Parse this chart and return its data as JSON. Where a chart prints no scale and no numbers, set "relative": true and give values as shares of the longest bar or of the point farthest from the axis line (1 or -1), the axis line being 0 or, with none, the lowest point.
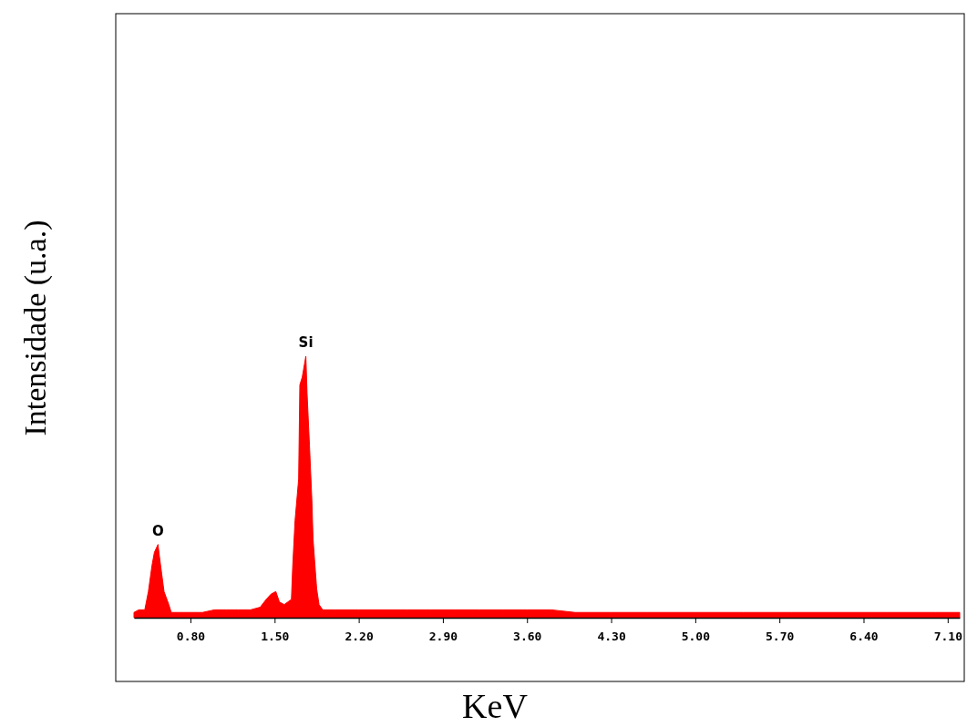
{
  "chart_data": {
    "type": "area",
    "relative": true,
    "xlabel": "KeV",
    "ylabel": "Intensidade (u.a.)",
    "xlim": [
      0.33,
      7.2
    ],
    "xticks": [
      {
        "value": 0.8,
        "label": "0.80"
      },
      {
        "value": 1.5,
        "label": "1.50"
      },
      {
        "value": 2.2,
        "label": "2.20"
      },
      {
        "value": 2.9,
        "label": "2.90"
      },
      {
        "value": 3.6,
        "label": "3.60"
      },
      {
        "value": 4.3,
        "label": "4.30"
      },
      {
        "value": 5.0,
        "label": "5.00"
      },
      {
        "value": 5.7,
        "label": "5.70"
      },
      {
        "value": 6.4,
        "label": "6.40"
      },
      {
        "value": 7.1,
        "label": "7.10"
      }
    ],
    "annotations": [
      {
        "text": "O",
        "x": 0.53,
        "y": 0.28
      },
      {
        "text": "Si",
        "x": 1.76,
        "y": 1
      }
    ],
    "series": [
      {
        "color": "#ff0000",
        "x": [
          0.33,
          0.37,
          0.42,
          0.45,
          0.48,
          0.5,
          0.53,
          0.54,
          0.56,
          0.58,
          0.62,
          0.64,
          0.7,
          0.8,
          0.9,
          1.0,
          1.1,
          1.2,
          1.3,
          1.38,
          1.43,
          1.47,
          1.51,
          1.54,
          1.58,
          1.61,
          1.64,
          1.65,
          1.67,
          1.7,
          1.71,
          1.73,
          1.76,
          1.77,
          1.79,
          1.81,
          1.82,
          1.85,
          1.87,
          1.9,
          2.0,
          2.2,
          2.4,
          2.6,
          2.8,
          3.0,
          3.2,
          3.4,
          3.6,
          3.8,
          4.0,
          4.3,
          4.6,
          5.0,
          5.4,
          5.8,
          6.2,
          6.6,
          7.0,
          7.2
        ],
        "values": [
          0.02,
          0.03,
          0.03,
          0.1,
          0.2,
          0.25,
          0.28,
          0.24,
          0.17,
          0.1,
          0.05,
          0.02,
          0.02,
          0.02,
          0.02,
          0.03,
          0.03,
          0.03,
          0.03,
          0.04,
          0.07,
          0.09,
          0.1,
          0.06,
          0.05,
          0.06,
          0.07,
          0.19,
          0.37,
          0.53,
          0.89,
          0.92,
          1,
          0.86,
          0.66,
          0.45,
          0.3,
          0.11,
          0.05,
          0.03,
          0.03,
          0.03,
          0.03,
          0.03,
          0.03,
          0.03,
          0.03,
          0.03,
          0.03,
          0.03,
          0.02,
          0.02,
          0.02,
          0.02,
          0.02,
          0.02,
          0.02,
          0.02,
          0.02,
          0.02
        ]
      }
    ]
  }
}
